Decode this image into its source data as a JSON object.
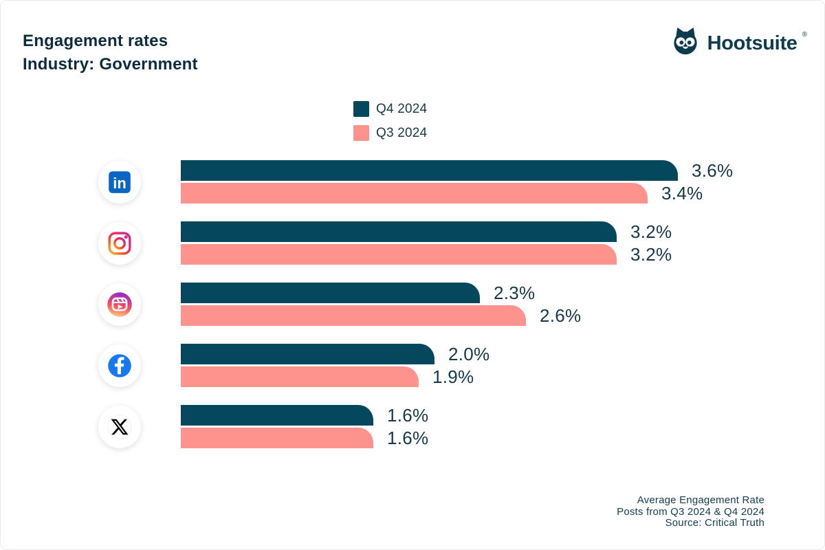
{
  "header": {
    "title_line1": "Engagement rates",
    "title_line2": "Industry: Government"
  },
  "brand": {
    "wordmark": "Hootsuite",
    "registered_mark": "®",
    "logo_icon": "hootsuite-owl-icon"
  },
  "legend": {
    "position": "top-center",
    "items": [
      {
        "label": "Q4 2024",
        "color": "#05485E"
      },
      {
        "label": "Q3 2024",
        "color": "#FE938E"
      }
    ]
  },
  "chart_data": {
    "type": "bar",
    "orientation": "horizontal",
    "title": "Engagement rates",
    "subtitle": "Industry: Government",
    "value_unit": "%",
    "xlim": [
      0,
      4
    ],
    "grid": false,
    "legend_position": "top-center",
    "categories": [
      "LinkedIn",
      "Instagram",
      "Instagram Reels",
      "Facebook",
      "X (Twitter)"
    ],
    "category_icons": [
      "linkedin-icon",
      "instagram-icon",
      "instagram-reels-icon",
      "facebook-icon",
      "x-icon"
    ],
    "series": [
      {
        "name": "Q4 2024",
        "color": "#05485E",
        "values": [
          3.6,
          3.2,
          2.3,
          2.0,
          1.6
        ],
        "labels": [
          "3.6%",
          "3.2%",
          "2.3%",
          "2.0%",
          "1.6%"
        ]
      },
      {
        "name": "Q3 2024",
        "color": "#FE938E",
        "values": [
          3.4,
          3.2,
          2.6,
          1.9,
          1.6
        ],
        "labels": [
          "3.4%",
          "3.2%",
          "2.6%",
          "1.9%",
          "1.6%"
        ]
      }
    ]
  },
  "footer": {
    "line1": "Average Engagement Rate",
    "line2": "Posts from Q3 2024 & Q4 2024",
    "line3": "Source: Critical Truth"
  },
  "colors": {
    "q4_bar": "#05485E",
    "q3_bar": "#FE938E",
    "ink": "#16384A",
    "title_ink": "#0D2C3F",
    "background": "#FFFFFF",
    "linkedin_blue": "#0A66C2",
    "facebook_blue": "#1877F2"
  }
}
